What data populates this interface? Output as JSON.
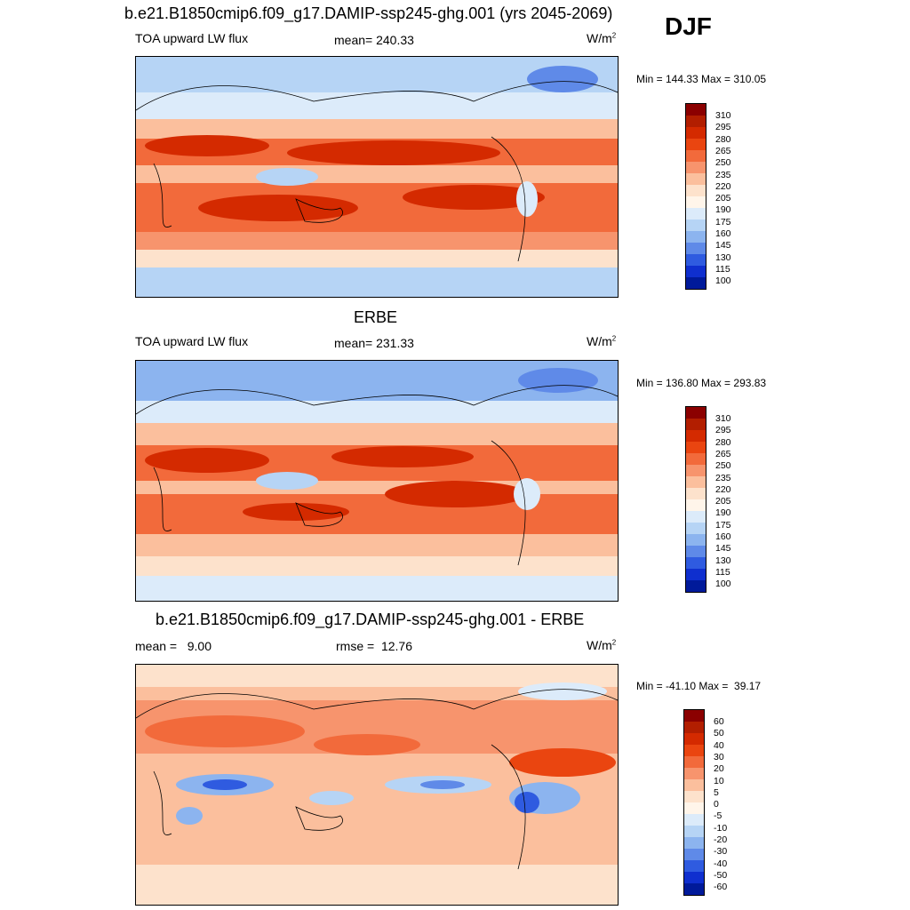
{
  "season": "DJF",
  "panels": [
    {
      "title": "b.e21.B1850cmip6.f09_g17.DAMIP-ssp245-ghg.001 (yrs 2045-2069)",
      "left": "TOA upward LW flux",
      "center": "mean= 240.33",
      "units": "W/m",
      "units_sup": "2",
      "minmax": "Min = 144.33 Max = 310.05",
      "colorbar": {
        "labels": [
          "310",
          "295",
          "280",
          "265",
          "250",
          "235",
          "220",
          "205",
          "190",
          "175",
          "160",
          "145",
          "130",
          "115",
          "100"
        ],
        "colors": [
          "#8b0000",
          "#b21e00",
          "#d42a00",
          "#ea4510",
          "#f26a3b",
          "#f7946d",
          "#fbbf9d",
          "#fde2cc",
          "#fff5ea",
          "#dcebfa",
          "#b6d4f5",
          "#8cb4ef",
          "#5f8ae8",
          "#2f5be0",
          "#0f2fcf",
          "#001a9a"
        ]
      }
    },
    {
      "title": "ERBE",
      "left": "TOA upward LW flux",
      "center": "mean= 231.33",
      "units": "W/m",
      "units_sup": "2",
      "minmax": "Min = 136.80 Max = 293.83",
      "colorbar": {
        "labels": [
          "310",
          "295",
          "280",
          "265",
          "250",
          "235",
          "220",
          "205",
          "190",
          "175",
          "160",
          "145",
          "130",
          "115",
          "100"
        ],
        "colors": [
          "#8b0000",
          "#b21e00",
          "#d42a00",
          "#ea4510",
          "#f26a3b",
          "#f7946d",
          "#fbbf9d",
          "#fde2cc",
          "#fff5ea",
          "#dcebfa",
          "#b6d4f5",
          "#8cb4ef",
          "#5f8ae8",
          "#2f5be0",
          "#0f2fcf",
          "#001a9a"
        ]
      }
    },
    {
      "title": "b.e21.B1850cmip6.f09_g17.DAMIP-ssp245-ghg.001 - ERBE",
      "left": "mean =   9.00",
      "center": "rmse =  12.76",
      "units": "W/m",
      "units_sup": "2",
      "minmax": "Min = -41.10 Max =  39.17",
      "colorbar": {
        "labels": [
          "60",
          "50",
          "40",
          "30",
          "20",
          "10",
          "5",
          "0",
          "-5",
          "-10",
          "-20",
          "-30",
          "-40",
          "-50",
          "-60"
        ],
        "colors": [
          "#8b0000",
          "#b21e00",
          "#d42a00",
          "#ea4510",
          "#f26a3b",
          "#f7946d",
          "#fbbf9d",
          "#fde2cc",
          "#fff5ea",
          "#dcebfa",
          "#b6d4f5",
          "#8cb4ef",
          "#5f8ae8",
          "#2f5be0",
          "#0f2fcf",
          "#001a9a"
        ]
      }
    }
  ]
}
